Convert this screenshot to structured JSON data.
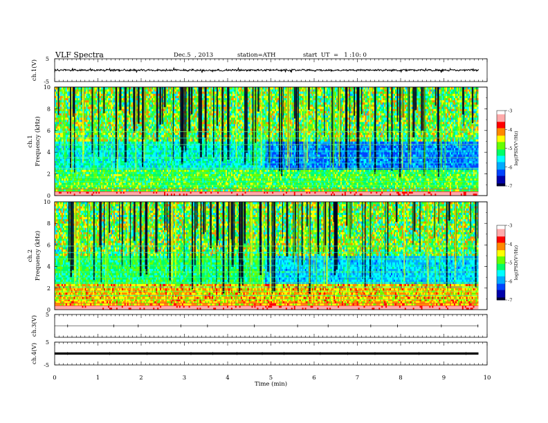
{
  "header": {
    "title": "VLF Spectra",
    "date": "Dec.5  , 2013",
    "station": "station=ATH",
    "start": "start  UT  =   1 :10: 0"
  },
  "chart_data": [
    {
      "type": "line",
      "name": "ch1-waveform",
      "ylabel": "ch.1(V)",
      "ylim": [
        -5,
        5
      ],
      "yticks": [
        "5",
        "-5"
      ],
      "xlim": [
        0,
        10
      ],
      "baseline": 0,
      "envelope_amplitude": 0.5,
      "x_end": 9.8
    },
    {
      "type": "heatmap",
      "name": "ch1-spectrogram",
      "ylabel": "ch.1",
      "ylabel2": "Frequency  (kHz)",
      "ylim": [
        0,
        10
      ],
      "yticks": [
        "0",
        "2",
        "4",
        "6",
        "8",
        "10"
      ],
      "xlim": [
        0,
        10
      ],
      "x_end": 9.8,
      "colorbar": {
        "label": "log(PSD(V²/Hz)",
        "ticks": [
          "-3",
          "-4",
          "-5",
          "-6",
          "-7"
        ],
        "range": [
          -7,
          -3
        ]
      },
      "segment_breaks_min": [
        4.85,
        6.25
      ]
    },
    {
      "type": "heatmap",
      "name": "ch2-spectrogram",
      "ylabel": "ch.2",
      "ylabel2": "Frequency  (kHz)",
      "ylim": [
        0,
        10
      ],
      "yticks": [
        "0",
        "2",
        "4",
        "6",
        "8",
        "10"
      ],
      "xlim": [
        0,
        10
      ],
      "x_end": 9.8,
      "colorbar": {
        "label": "log(PSD(V²/Hz)",
        "ticks": [
          "-3",
          "-4",
          "-5",
          "-6",
          "-7"
        ],
        "range": [
          -7,
          -3
        ]
      },
      "segment_breaks_min": [
        4.85,
        6.25
      ]
    },
    {
      "type": "line",
      "name": "ch3-waveform",
      "ylabel": "ch.3(V)",
      "ylim": [
        -5,
        5
      ],
      "yticks": [
        "5"
      ],
      "xlim": [
        0,
        10
      ],
      "baseline": 0,
      "x_end": 9.8
    },
    {
      "type": "line",
      "name": "ch4-waveform",
      "ylabel": "ch.4(V)",
      "ylim": [
        -5,
        5
      ],
      "yticks": [
        "5",
        "-5"
      ],
      "xlim": [
        0,
        10
      ],
      "baseline": 0,
      "x_end": 9.8
    }
  ],
  "xaxis": {
    "label": "Time  (min)",
    "ticks": [
      "0",
      "1",
      "2",
      "3",
      "4",
      "5",
      "6",
      "7",
      "8",
      "9",
      "10"
    ]
  },
  "colors": {
    "cmap": [
      "#000033",
      "#0000aa",
      "#0044ff",
      "#00aaff",
      "#00ffff",
      "#00ff66",
      "#66ff00",
      "#ffff00",
      "#ff8800",
      "#ff0000",
      "#ffaaaa",
      "#ffffff"
    ]
  }
}
